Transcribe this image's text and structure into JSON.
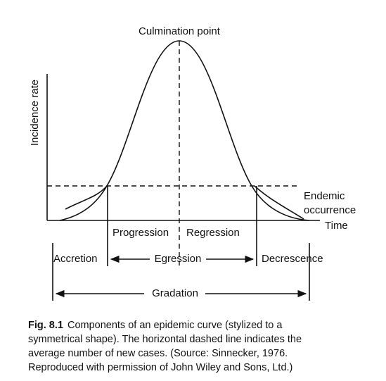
{
  "figure": {
    "peak_label": "Culmination point",
    "y_axis_label": "Incidence rate",
    "x_axis_label": "Time",
    "endemic_label": [
      "Endemic",
      "occurrence"
    ],
    "phases": {
      "progression": "Progression",
      "regression": "Regression",
      "accretion": "Accretion",
      "egression": "Egression",
      "decrescence": "Decrescence",
      "gradation": "Gradation"
    }
  },
  "caption": {
    "label": "Fig. 8.1",
    "lines": [
      "Components of an epidemic curve (stylized to a",
      "symmetrical shape). The horizontal dashed line indicates the",
      "average number of new cases. (Source: Sinnecker, 1976.",
      "Reproduced with permission of John Wiley and Sons, Ltd.)"
    ]
  }
}
